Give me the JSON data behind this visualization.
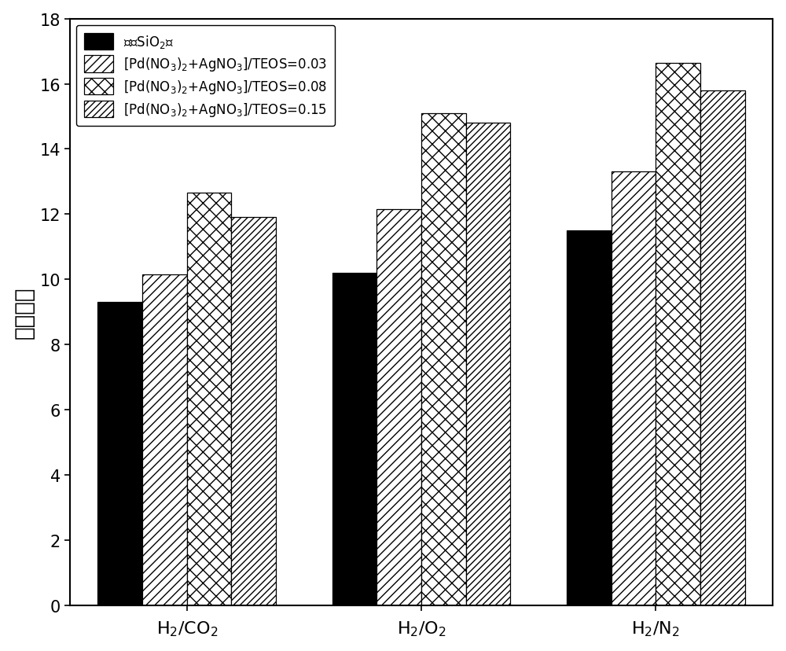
{
  "groups_math": [
    "$H_2/CO_2$",
    "$H_2/O_2$",
    "$H_2/N_2$"
  ],
  "series": [
    {
      "values": [
        9.3,
        10.2,
        11.5
      ],
      "facecolor": "#000000",
      "hatch": "",
      "edgecolor": "#000000"
    },
    {
      "values": [
        10.15,
        12.15,
        13.3
      ],
      "facecolor": "#ffffff",
      "hatch": "///",
      "edgecolor": "#000000"
    },
    {
      "values": [
        12.65,
        15.1,
        16.65
      ],
      "facecolor": "#ffffff",
      "hatch": "xx",
      "edgecolor": "#000000"
    },
    {
      "values": [
        11.9,
        14.8,
        15.8
      ],
      "facecolor": "#ffffff",
      "hatch": "////",
      "edgecolor": "#000000"
    }
  ],
  "ylim": [
    0,
    18
  ],
  "yticks": [
    0,
    2,
    4,
    6,
    8,
    10,
    12,
    14,
    16,
    18
  ],
  "bar_width": 0.19,
  "background_color": "#ffffff",
  "legend_fontsize": 12,
  "ylabel_fontsize": 20,
  "tick_fontsize": 15,
  "xlabel_fontsize": 16
}
